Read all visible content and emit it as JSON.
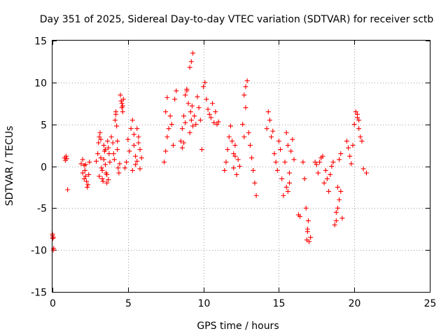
{
  "chart_data": {
    "type": "scatter",
    "title": "Day 351 of 2025, Sidereal Day-to-day VTEC variation (SDTVAR) for receiver sctb",
    "xlabel": "GPS time / hours",
    "ylabel": "SDTVAR / TECUs",
    "xlim": [
      0,
      25
    ],
    "ylim": [
      -15,
      15
    ],
    "xticks": [
      0,
      5,
      10,
      15,
      20,
      25
    ],
    "yticks": [
      -15,
      -10,
      -5,
      0,
      5,
      10,
      15
    ],
    "grid": true,
    "marker": "plus",
    "color": "#ff0000",
    "series": [
      {
        "name": "SDTVAR",
        "x": [
          0.0,
          0.02,
          0.05,
          0.08,
          0.0,
          0.05,
          0.8,
          0.85,
          0.9,
          0.95,
          1.0,
          1.9,
          2.0,
          2.1,
          2.15,
          2.2,
          2.25,
          2.3,
          2.35,
          2.4,
          2.45,
          2.0,
          2.1,
          2.2,
          2.9,
          3.0,
          3.05,
          3.1,
          3.15,
          3.2,
          3.25,
          3.3,
          3.35,
          3.4,
          3.45,
          3.5,
          3.55,
          3.6,
          3.65,
          3.7,
          3.75,
          3.8,
          3.3,
          3.4,
          3.5,
          3.6,
          3.7,
          3.2,
          3.1,
          3.9,
          4.0,
          4.05,
          4.1,
          4.15,
          4.2,
          4.25,
          4.3,
          4.35,
          4.4,
          4.45,
          4.2,
          4.3,
          4.5,
          4.55,
          4.6,
          4.65,
          4.7,
          4.6,
          4.65,
          4.8,
          4.9,
          5.0,
          5.1,
          5.2,
          5.3,
          5.4,
          5.5,
          5.3,
          5.4,
          5.5,
          5.6,
          5.7,
          5.8,
          5.9,
          5.6,
          5.7,
          5.8,
          7.4,
          7.5,
          7.6,
          7.7,
          7.8,
          7.9,
          8.0,
          8.1,
          8.2,
          7.5,
          7.6,
          8.5,
          8.6,
          8.7,
          8.8,
          8.9,
          9.0,
          8.6,
          8.7,
          8.8,
          8.9,
          9.1,
          9.2,
          9.3,
          9.4,
          9.5,
          9.1,
          9.15,
          9.2,
          9.25,
          9.3,
          9.6,
          9.7,
          9.8,
          9.9,
          10.0,
          10.1,
          10.2,
          10.3,
          10.4,
          10.5,
          10.6,
          10.7,
          10.8,
          10.9,
          11.0,
          11.4,
          11.5,
          11.6,
          11.7,
          11.8,
          11.9,
          12.0,
          12.1,
          12.2,
          12.3,
          12.4,
          12.0,
          12.1,
          12.6,
          12.7,
          12.8,
          12.9,
          13.0,
          13.1,
          13.2,
          13.3,
          13.4,
          13.5,
          12.7,
          12.8,
          14.2,
          14.3,
          14.4,
          14.5,
          14.6,
          14.7,
          14.8,
          14.9,
          15.0,
          15.1,
          15.2,
          15.3,
          15.4,
          15.5,
          15.6,
          15.7,
          15.8,
          15.9,
          16.0,
          15.5,
          15.6,
          15.7,
          16.3,
          16.4,
          16.6,
          16.7,
          16.8,
          16.9,
          17.0,
          17.1,
          16.85,
          16.9,
          16.95,
          17.4,
          17.5,
          17.6,
          17.7,
          17.8,
          17.9,
          18.0,
          18.1,
          18.2,
          18.3,
          18.4,
          18.5,
          18.6,
          18.7,
          18.8,
          18.9,
          19.0,
          19.1,
          19.2,
          18.8,
          18.9,
          19.0,
          19.1,
          19.5,
          19.6,
          19.7,
          19.8,
          19.9,
          20.0,
          20.1,
          20.2,
          20.3,
          20.4,
          20.5,
          20.6,
          20.8,
          20.2,
          20.3
        ],
        "y": [
          -8.3,
          -8.6,
          -10.0,
          -9.8,
          -8.1,
          -8.5,
          1.0,
          0.7,
          1.2,
          0.9,
          -2.8,
          0.3,
          0.8,
          0.1,
          -0.5,
          -1.2,
          -1.8,
          -2.5,
          -2.2,
          -1.0,
          0.5,
          -0.8,
          -1.5,
          0.2,
          0.6,
          1.5,
          2.8,
          3.5,
          4.0,
          1.0,
          -0.2,
          -1.5,
          -1.8,
          2.5,
          1.8,
          0.2,
          -0.8,
          -2.0,
          3.0,
          2.2,
          1.5,
          0.5,
          -0.5,
          0.8,
          2.0,
          -1.0,
          -1.6,
          3.2,
          -1.2,
          3.5,
          2.8,
          1.5,
          0.8,
          5.5,
          6.2,
          4.8,
          3.0,
          -0.2,
          -0.8,
          0.3,
          6.5,
          2.0,
          8.5,
          7.8,
          7.0,
          6.5,
          8.0,
          7.5,
          7.2,
          -0.2,
          0.5,
          3.2,
          1.8,
          4.5,
          5.5,
          3.8,
          0.2,
          -0.5,
          2.5,
          1.2,
          0.6,
          2.8,
          2.0,
          1.0,
          4.5,
          3.5,
          -0.3,
          0.5,
          1.8,
          3.5,
          4.5,
          6.0,
          5.0,
          2.5,
          8.0,
          9.0,
          6.5,
          8.2,
          3.0,
          4.5,
          6.0,
          8.5,
          9.0,
          7.5,
          2.2,
          2.8,
          5.2,
          9.2,
          11.8,
          12.5,
          13.5,
          6.0,
          5.0,
          4.0,
          6.5,
          5.5,
          7.2,
          4.8,
          8.3,
          7.0,
          5.5,
          2.0,
          9.5,
          10.0,
          8.0,
          6.8,
          6.2,
          5.8,
          7.5,
          5.2,
          6.5,
          5.0,
          5.3,
          -0.5,
          0.5,
          2.0,
          3.5,
          4.8,
          3.0,
          1.5,
          2.5,
          -1.0,
          0.8,
          0.0,
          -0.2,
          1.2,
          5.0,
          3.5,
          9.5,
          10.2,
          4.0,
          2.5,
          1.0,
          -0.5,
          -2.0,
          -3.5,
          8.5,
          7.0,
          4.5,
          6.5,
          5.5,
          3.5,
          4.2,
          1.5,
          0.5,
          -0.5,
          3.0,
          2.0,
          -1.5,
          -3.5,
          0.5,
          4.0,
          2.5,
          -0.8,
          1.8,
          3.2,
          0.8,
          -2.5,
          -3.0,
          -2.0,
          -5.8,
          -6.0,
          0.5,
          -1.5,
          -5.0,
          -7.5,
          -9.0,
          -8.5,
          -8.8,
          -7.8,
          -6.5,
          0.5,
          0.2,
          -0.8,
          0.5,
          1.0,
          1.2,
          -2.0,
          -0.5,
          -1.5,
          -3.0,
          -1.0,
          0.0,
          0.5,
          -7.0,
          -6.5,
          -5.0,
          -4.0,
          -3.0,
          -6.2,
          -5.5,
          -2.5,
          0.8,
          1.5,
          3.0,
          2.2,
          1.2,
          0.3,
          2.5,
          5.0,
          6.5,
          6.2,
          5.5,
          3.5,
          3.0,
          -0.3,
          -0.8,
          5.8,
          4.5
        ]
      }
    ]
  }
}
